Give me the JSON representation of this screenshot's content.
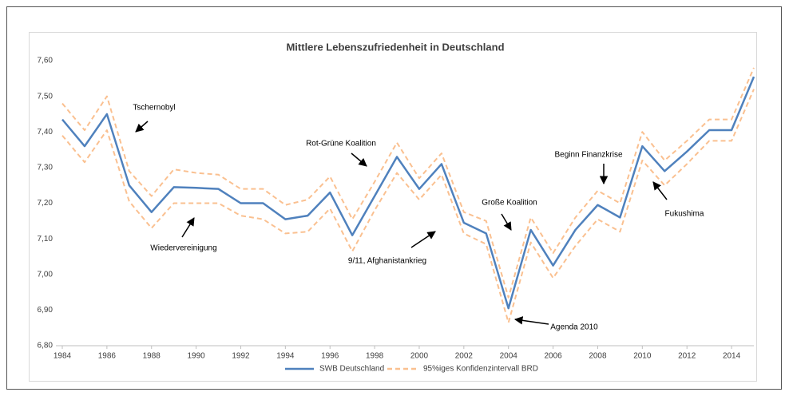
{
  "chart_data": {
    "type": "line",
    "title": "Mittlere Lebenszufriedenheit in Deutschland",
    "x": [
      1984,
      1985,
      1986,
      1987,
      1988,
      1989,
      1990,
      1991,
      1992,
      1993,
      1994,
      1995,
      1996,
      1997,
      1998,
      1999,
      2000,
      2001,
      2002,
      2003,
      2004,
      2005,
      2006,
      2007,
      2008,
      2009,
      2010,
      2011,
      2012,
      2013,
      2014,
      2015
    ],
    "series": [
      {
        "name": "SWB Deutschland",
        "color": "#4f81bd",
        "values": [
          7.435,
          7.36,
          7.45,
          7.25,
          7.175,
          7.245,
          7.243,
          7.24,
          7.2,
          7.2,
          7.155,
          7.165,
          7.23,
          7.11,
          7.22,
          7.33,
          7.24,
          7.31,
          7.145,
          7.115,
          6.905,
          7.125,
          7.025,
          7.125,
          7.195,
          7.16,
          7.36,
          7.29,
          7.345,
          7.405,
          7.405,
          7.555
        ]
      },
      {
        "name": "95%iges Konfidenzintervall BRD",
        "color": "#fac090",
        "dashed": true,
        "upper": [
          7.48,
          7.405,
          7.5,
          7.29,
          7.22,
          7.295,
          7.285,
          7.28,
          7.24,
          7.24,
          7.195,
          7.21,
          7.275,
          7.155,
          7.26,
          7.37,
          7.27,
          7.34,
          7.175,
          7.15,
          6.935,
          7.16,
          7.06,
          7.16,
          7.235,
          7.2,
          7.4,
          7.32,
          7.375,
          7.435,
          7.435,
          7.58
        ],
        "lower": [
          7.39,
          7.315,
          7.405,
          7.205,
          7.13,
          7.2,
          7.2,
          7.2,
          7.165,
          7.155,
          7.115,
          7.12,
          7.185,
          7.065,
          7.18,
          7.285,
          7.21,
          7.28,
          7.115,
          7.085,
          6.865,
          7.09,
          6.99,
          7.08,
          7.155,
          7.12,
          7.32,
          7.25,
          7.31,
          7.375,
          7.375,
          7.52
        ]
      }
    ],
    "xlim": [
      1984,
      2015
    ],
    "xticks": [
      1984,
      1986,
      1988,
      1990,
      1992,
      1994,
      1996,
      1998,
      2000,
      2002,
      2004,
      2006,
      2008,
      2010,
      2012,
      2014
    ],
    "ylim": [
      6.8,
      7.6
    ],
    "yticks": [
      {
        "value": 6.8,
        "label": "6,80"
      },
      {
        "value": 6.9,
        "label": "6,90"
      },
      {
        "value": 7.0,
        "label": "7,00"
      },
      {
        "value": 7.1,
        "label": "7,10"
      },
      {
        "value": 7.2,
        "label": "7,20"
      },
      {
        "value": 7.3,
        "label": "7,30"
      },
      {
        "value": 7.4,
        "label": "7,40"
      },
      {
        "value": 7.5,
        "label": "7,50"
      },
      {
        "value": 7.6,
        "label": "7,60"
      }
    ],
    "grid": false,
    "annotations": [
      "Tschernobyl",
      "Wiedervereinigung",
      "Rot-Grüne Koalition",
      "9/11, Afghanistankrieg",
      "Große Koalition",
      "Agenda 2010",
      "Beginn Finanzkrise",
      "Fukushima"
    ]
  }
}
